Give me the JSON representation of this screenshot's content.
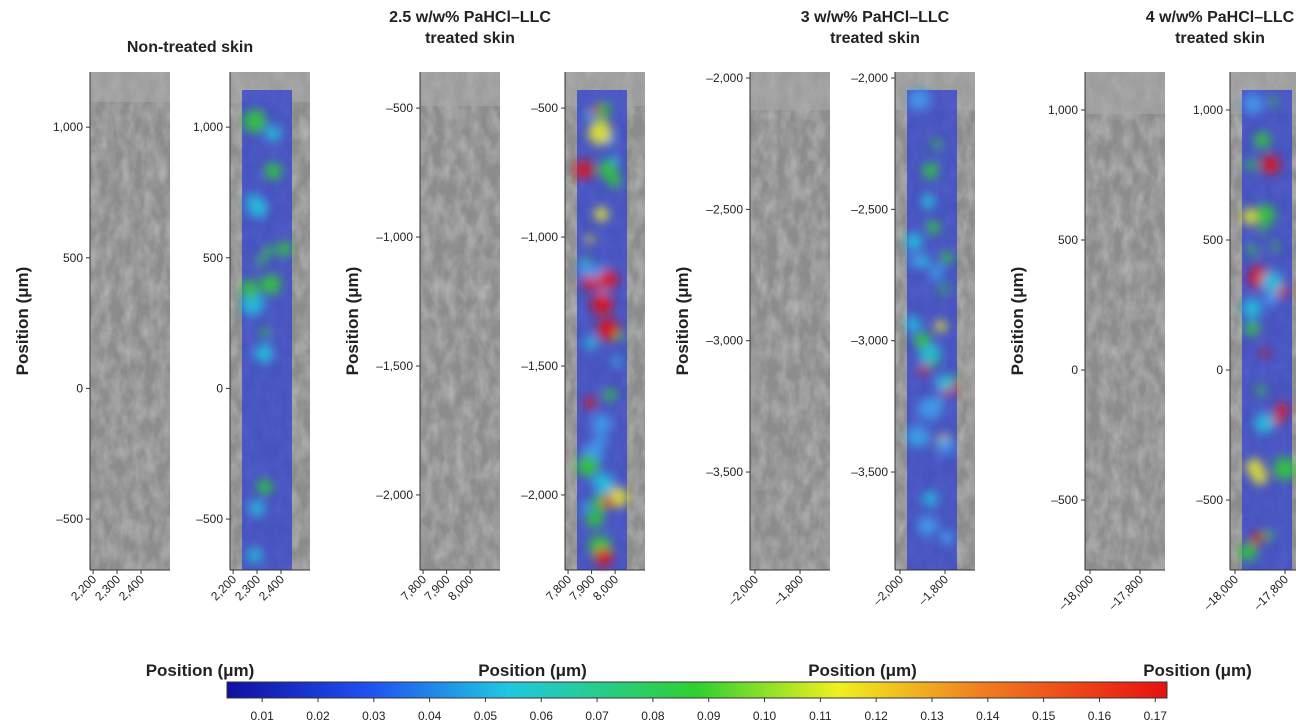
{
  "panels": [
    {
      "title": [
        "Non-treated skin"
      ],
      "ylabel": "Position (μm)",
      "xlabel": "Position (μm)",
      "ylim": [
        -695,
        1211
      ],
      "yticks": [
        {
          "value": 1000,
          "label": "1,000"
        },
        500,
        0,
        {
          "value": -500,
          "label": "–500"
        }
      ],
      "xlim": [
        2187,
        2521
      ],
      "xticks": [
        {
          "value": 2200,
          "label": "2,200"
        },
        {
          "value": 2300,
          "label": "2,300"
        },
        {
          "value": 2400,
          "label": "2,400"
        }
      ]
    },
    {
      "title": [
        "2.5 w/w% PaHCl–LLC",
        "treated skin"
      ],
      "ylabel": "Position (μm)",
      "xlabel": "Position (μm)",
      "ylim": [
        -2291,
        -360
      ],
      "yticks": [
        {
          "value": -500,
          "label": "–500"
        },
        {
          "value": -1000,
          "label": "–1,000"
        },
        {
          "value": -1500,
          "label": "–1,500"
        },
        {
          "value": -2000,
          "label": "–2,000"
        }
      ],
      "xlim": [
        7787,
        8127
      ],
      "xticks": [
        {
          "value": 7800,
          "label": "7,800"
        },
        {
          "value": 7900,
          "label": "7,900"
        },
        {
          "value": 8000,
          "label": "8,000"
        }
      ]
    },
    {
      "title": [
        "3 w/w% PaHCl–LLC",
        "treated skin"
      ],
      "ylabel": "Position (μm)",
      "xlabel": "Position (μm)",
      "ylim": [
        -3873,
        -1977
      ],
      "yticks": [
        {
          "value": -2000,
          "label": "–2,000"
        },
        {
          "value": -2500,
          "label": "–2,500"
        },
        {
          "value": -3000,
          "label": "–3,000"
        },
        {
          "value": -3500,
          "label": "–3,500"
        }
      ],
      "xlim": [
        -2022,
        -1667
      ],
      "xticks": [
        {
          "value": -2000,
          "label": "–2,000"
        },
        {
          "value": -1800,
          "label": "–1,800"
        }
      ]
    },
    {
      "title": [
        "4 w/w% PaHCl–LLC",
        "treated skin"
      ],
      "ylabel": "Position (μm)",
      "xlabel": "Position (μm)",
      "ylim": [
        -769,
        1146
      ],
      "yticks": [
        {
          "value": 1000,
          "label": "1,000"
        },
        500,
        0,
        {
          "value": -500,
          "label": "–500"
        }
      ],
      "xlim": [
        -18020,
        -17700
      ],
      "xticks": [
        {
          "value": -18000,
          "label": "–18,000"
        },
        {
          "value": -17800,
          "label": "–17,800"
        }
      ]
    }
  ],
  "colorbar": {
    "lim": [
      0.0037,
      0.1721
    ],
    "ticks": [
      0.01,
      0.02,
      0.03,
      0.04,
      0.05,
      0.06,
      0.07,
      0.08,
      0.09,
      {
        "value": 0.1,
        "label": "0.10"
      },
      0.11,
      0.12,
      0.13,
      0.14,
      0.15,
      0.16,
      0.17
    ]
  }
}
